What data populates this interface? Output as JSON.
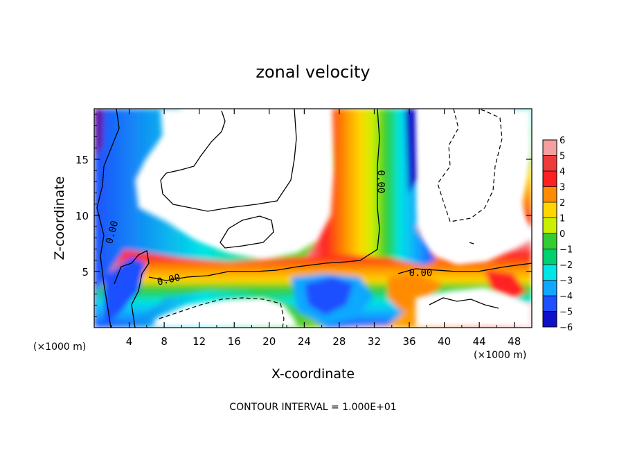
{
  "chart_data": {
    "type": "heatmap",
    "title": "zonal velocity",
    "xlabel": "X-coordinate",
    "ylabel": "Z-coordinate",
    "xlim": [
      0,
      50
    ],
    "ylim": [
      0,
      19.5
    ],
    "x_ticks": [
      "4",
      "8",
      "12",
      "16",
      "20",
      "24",
      "28",
      "32",
      "36",
      "40",
      "44",
      "48"
    ],
    "x_tick_values": [
      4,
      8,
      12,
      16,
      20,
      24,
      28,
      32,
      36,
      40,
      44,
      48
    ],
    "y_ticks": [
      "5",
      "10",
      "15"
    ],
    "y_tick_values": [
      5,
      10,
      15
    ],
    "x_unit_left": "(×1000 m)",
    "x_unit_right": "(×1000 m)",
    "footnote": "CONTOUR INTERVAL = 1.000E+01",
    "colorbar": {
      "levels": [
        6,
        5,
        4,
        3,
        2,
        1,
        0,
        -1,
        -2,
        -3,
        -4,
        -5,
        -6
      ],
      "labels": [
        "6",
        "5",
        "4",
        "3",
        "2",
        "1",
        "0",
        "−1",
        "−2",
        "−3",
        "−4",
        "−5",
        "−6"
      ],
      "colors": [
        "#f4a0a0",
        "#ee3b3b",
        "#ff2020",
        "#ff8c00",
        "#ffd700",
        "#c8f000",
        "#33cc33",
        "#00d070",
        "#00e5e5",
        "#10a8ff",
        "#1e50ff",
        "#1010c8",
        "#6010a8"
      ]
    },
    "contour_labels": [
      {
        "text": "0.00",
        "x": 2,
        "y": 8.5,
        "angle": -75
      },
      {
        "text": "0.00",
        "x": 8.5,
        "y": 4.3,
        "angle": -12
      },
      {
        "text": "0.00",
        "x": 32.8,
        "y": 13.0,
        "angle": 90
      },
      {
        "text": "0.00",
        "x": 37.3,
        "y": 4.9,
        "angle": 0
      }
    ],
    "colors": {
      "accent": "#000000",
      "background": "#ffffff"
    }
  }
}
